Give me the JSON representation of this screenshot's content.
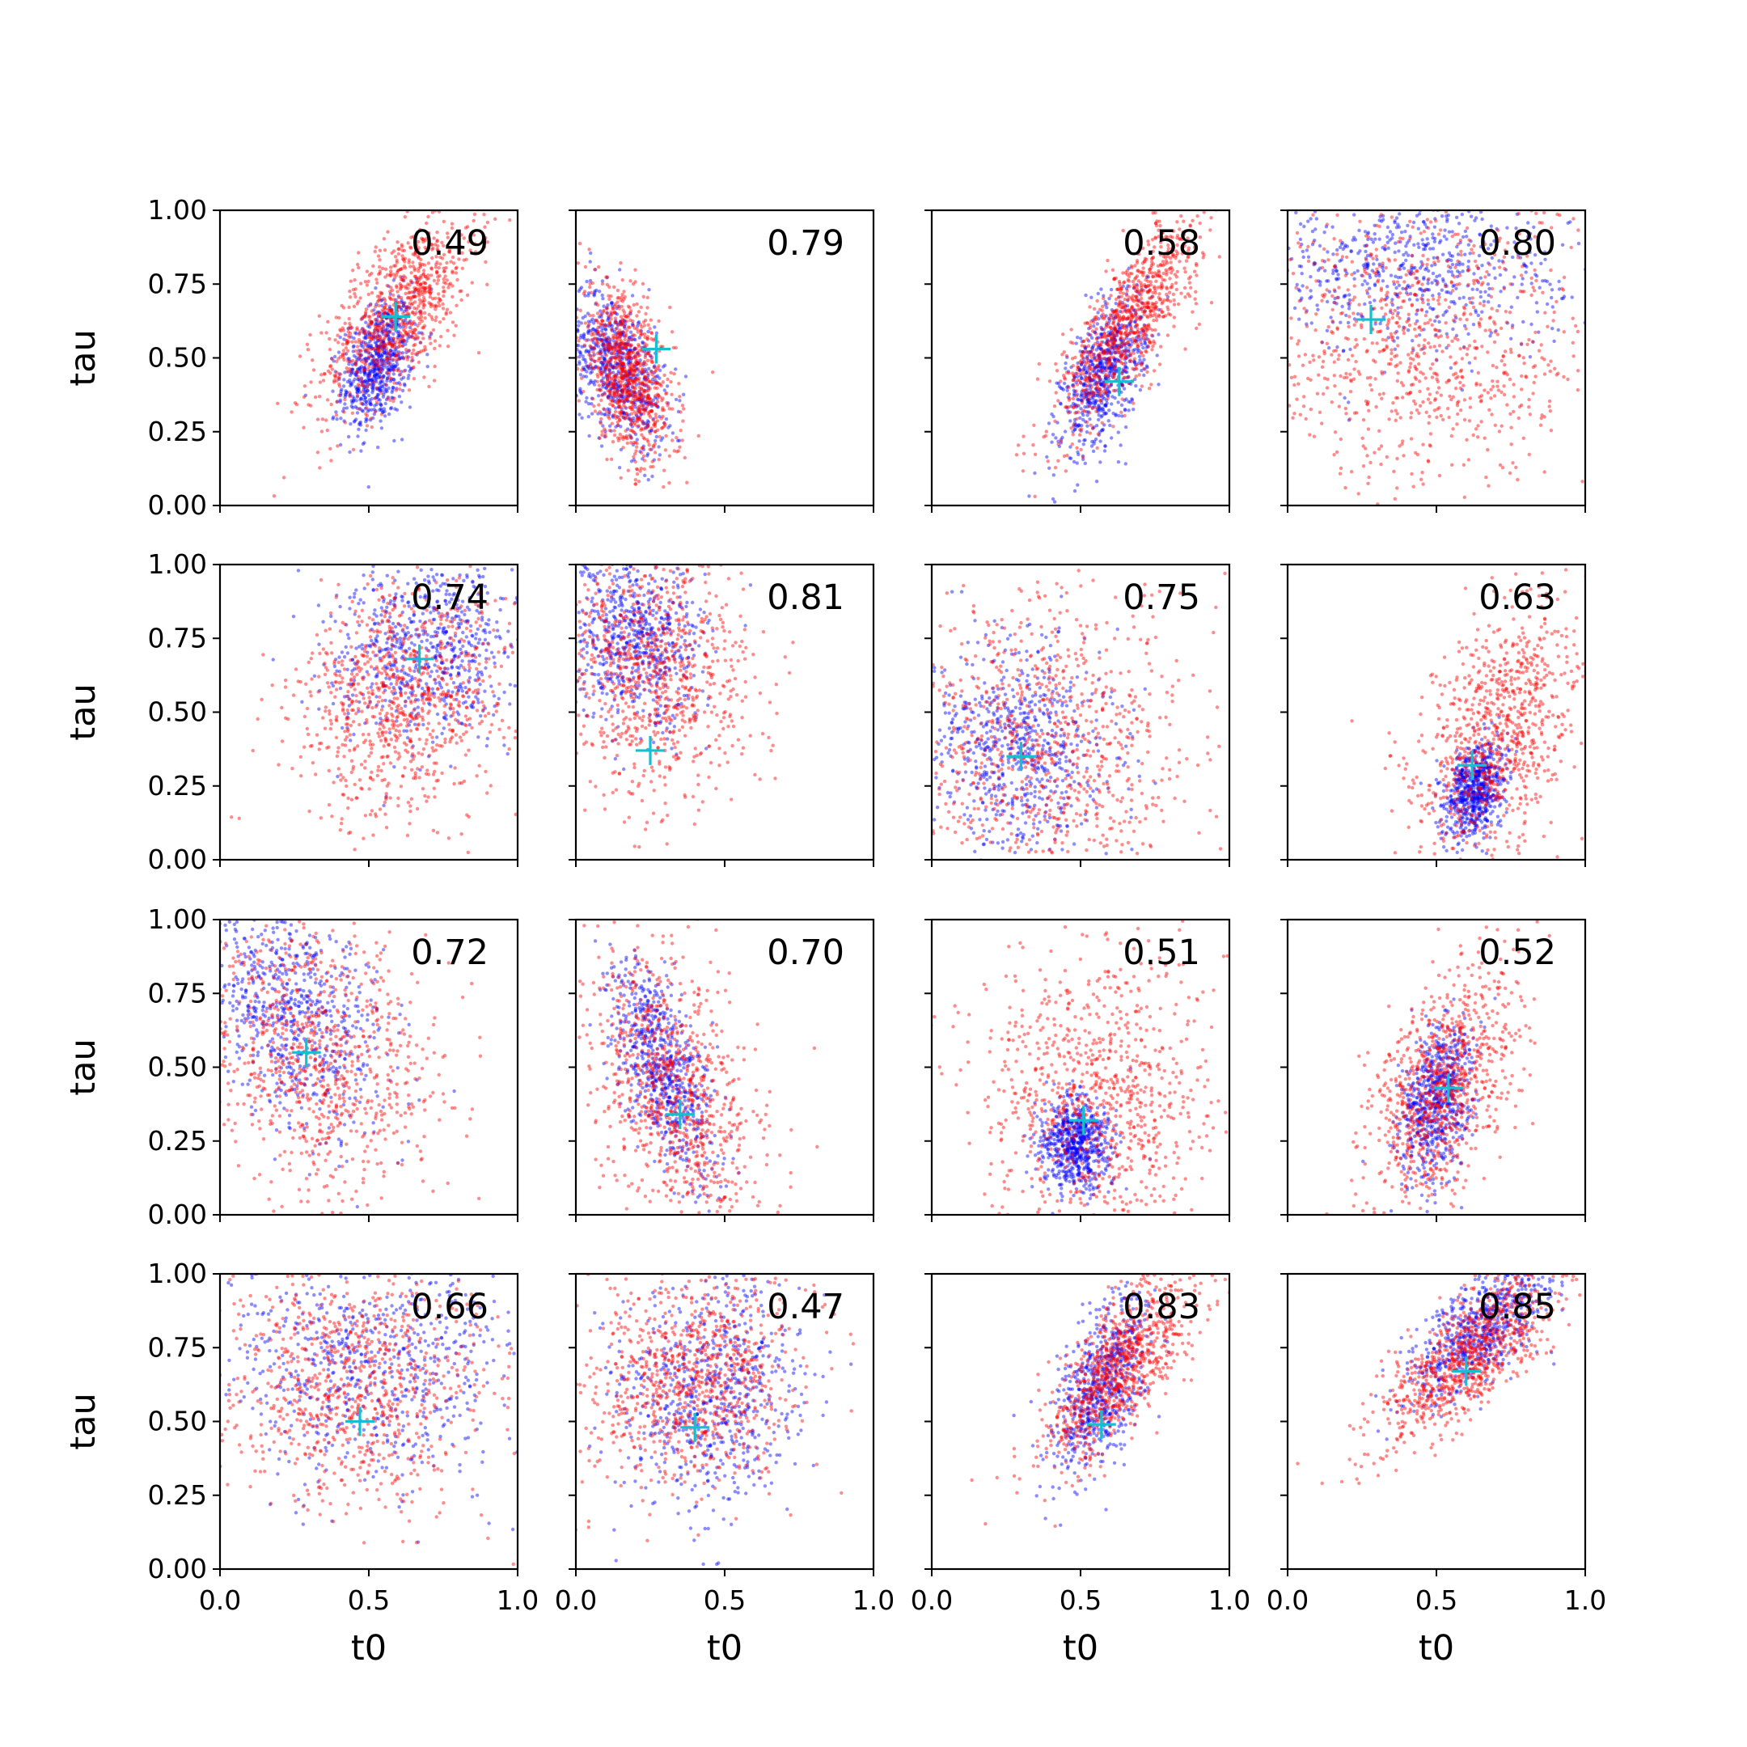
{
  "chart_data": {
    "type": "scatter",
    "layout": "4x4 grid of scatter panels, shared x and y axes",
    "xlabel": "t0",
    "ylabel": "tau",
    "xlim": [
      0,
      1
    ],
    "ylim": [
      0,
      1
    ],
    "xticks": [
      "0.0",
      "0.5",
      "1.0"
    ],
    "yticks": [
      "0.00",
      "0.25",
      "0.50",
      "0.75",
      "1.00"
    ],
    "grid": false,
    "legend": "none",
    "series_colors": {
      "blue": "#0000ff",
      "red": "#ff0000",
      "marker": "#17becf"
    },
    "panels": [
      {
        "score": "0.49",
        "marker": [
          0.59,
          0.64
        ],
        "blue": {
          "cx": 0.53,
          "cy": 0.48,
          "sx": 0.06,
          "sy": 0.11,
          "rho": 0.35,
          "n": 700
        },
        "red": {
          "cx": 0.6,
          "cy": 0.66,
          "sx": 0.13,
          "sy": 0.17,
          "rho": 0.65,
          "n": 900
        }
      },
      {
        "score": "0.79",
        "marker": [
          0.27,
          0.53
        ],
        "blue": {
          "cx": 0.14,
          "cy": 0.47,
          "sx": 0.08,
          "sy": 0.13,
          "rho": -0.45,
          "n": 700
        },
        "red": {
          "cx": 0.17,
          "cy": 0.44,
          "sx": 0.08,
          "sy": 0.15,
          "rho": -0.5,
          "n": 900
        }
      },
      {
        "score": "0.58",
        "marker": [
          0.63,
          0.42
        ],
        "blue": {
          "cx": 0.58,
          "cy": 0.45,
          "sx": 0.07,
          "sy": 0.13,
          "rho": 0.55,
          "n": 700
        },
        "red": {
          "cx": 0.66,
          "cy": 0.62,
          "sx": 0.12,
          "sy": 0.18,
          "rho": 0.8,
          "n": 900
        }
      },
      {
        "score": "0.80",
        "marker": [
          0.28,
          0.63
        ],
        "blue": {
          "cx": 0.4,
          "cy": 0.82,
          "sx": 0.28,
          "sy": 0.15,
          "rho": 0.0,
          "n": 700
        },
        "red": {
          "cx": 0.45,
          "cy": 0.55,
          "sx": 0.28,
          "sy": 0.25,
          "rho": 0.0,
          "n": 900
        }
      },
      {
        "score": "0.74",
        "marker": [
          0.67,
          0.68
        ],
        "blue": {
          "cx": 0.7,
          "cy": 0.72,
          "sx": 0.16,
          "sy": 0.16,
          "rho": 0.1,
          "n": 700
        },
        "red": {
          "cx": 0.62,
          "cy": 0.55,
          "sx": 0.18,
          "sy": 0.2,
          "rho": 0.15,
          "n": 900
        }
      },
      {
        "score": "0.81",
        "marker": [
          0.25,
          0.37
        ],
        "blue": {
          "cx": 0.2,
          "cy": 0.75,
          "sx": 0.12,
          "sy": 0.15,
          "rho": -0.15,
          "n": 700
        },
        "red": {
          "cx": 0.26,
          "cy": 0.65,
          "sx": 0.16,
          "sy": 0.22,
          "rho": -0.1,
          "n": 900
        }
      },
      {
        "score": "0.75",
        "marker": [
          0.3,
          0.35
        ],
        "blue": {
          "cx": 0.3,
          "cy": 0.38,
          "sx": 0.15,
          "sy": 0.18,
          "rho": 0.0,
          "n": 700
        },
        "red": {
          "cx": 0.38,
          "cy": 0.38,
          "sx": 0.25,
          "sy": 0.25,
          "rho": 0.0,
          "n": 900
        }
      },
      {
        "score": "0.63",
        "marker": [
          0.62,
          0.32
        ],
        "blue": {
          "cx": 0.63,
          "cy": 0.24,
          "sx": 0.05,
          "sy": 0.08,
          "rho": 0.3,
          "n": 700
        },
        "red": {
          "cx": 0.7,
          "cy": 0.4,
          "sx": 0.14,
          "sy": 0.23,
          "rho": 0.45,
          "n": 900
        }
      },
      {
        "score": "0.72",
        "marker": [
          0.29,
          0.55
        ],
        "blue": {
          "cx": 0.25,
          "cy": 0.68,
          "sx": 0.16,
          "sy": 0.2,
          "rho": -0.3,
          "n": 700
        },
        "red": {
          "cx": 0.32,
          "cy": 0.55,
          "sx": 0.2,
          "sy": 0.24,
          "rho": -0.25,
          "n": 900
        }
      },
      {
        "score": "0.70",
        "marker": [
          0.35,
          0.34
        ],
        "blue": {
          "cx": 0.29,
          "cy": 0.5,
          "sx": 0.09,
          "sy": 0.18,
          "rho": -0.6,
          "n": 700
        },
        "red": {
          "cx": 0.33,
          "cy": 0.42,
          "sx": 0.14,
          "sy": 0.24,
          "rho": -0.45,
          "n": 900
        }
      },
      {
        "score": "0.51",
        "marker": [
          0.51,
          0.32
        ],
        "blue": {
          "cx": 0.48,
          "cy": 0.24,
          "sx": 0.06,
          "sy": 0.08,
          "rho": 0.0,
          "n": 700
        },
        "red": {
          "cx": 0.55,
          "cy": 0.4,
          "sx": 0.2,
          "sy": 0.25,
          "rho": 0.0,
          "n": 900
        }
      },
      {
        "score": "0.52",
        "marker": [
          0.54,
          0.43
        ],
        "blue": {
          "cx": 0.5,
          "cy": 0.38,
          "sx": 0.06,
          "sy": 0.13,
          "rho": 0.3,
          "n": 700
        },
        "red": {
          "cx": 0.52,
          "cy": 0.42,
          "sx": 0.12,
          "sy": 0.2,
          "rho": 0.45,
          "n": 900
        }
      },
      {
        "score": "0.66",
        "marker": [
          0.47,
          0.5
        ],
        "blue": {
          "cx": 0.5,
          "cy": 0.7,
          "sx": 0.24,
          "sy": 0.2,
          "rho": 0.0,
          "n": 700
        },
        "red": {
          "cx": 0.45,
          "cy": 0.65,
          "sx": 0.24,
          "sy": 0.22,
          "rho": 0.0,
          "n": 900
        }
      },
      {
        "score": "0.47",
        "marker": [
          0.4,
          0.48
        ],
        "blue": {
          "cx": 0.45,
          "cy": 0.6,
          "sx": 0.15,
          "sy": 0.2,
          "rho": 0.1,
          "n": 700
        },
        "red": {
          "cx": 0.4,
          "cy": 0.65,
          "sx": 0.18,
          "sy": 0.18,
          "rho": 0.1,
          "n": 900
        }
      },
      {
        "score": "0.83",
        "marker": [
          0.57,
          0.49
        ],
        "blue": {
          "cx": 0.57,
          "cy": 0.62,
          "sx": 0.08,
          "sy": 0.15,
          "rho": 0.55,
          "n": 700
        },
        "red": {
          "cx": 0.63,
          "cy": 0.68,
          "sx": 0.12,
          "sy": 0.16,
          "rho": 0.7,
          "n": 900
        }
      },
      {
        "score": "0.85",
        "marker": [
          0.6,
          0.67
        ],
        "blue": {
          "cx": 0.65,
          "cy": 0.8,
          "sx": 0.12,
          "sy": 0.12,
          "rho": 0.7,
          "n": 700
        },
        "red": {
          "cx": 0.62,
          "cy": 0.73,
          "sx": 0.15,
          "sy": 0.15,
          "rho": 0.75,
          "n": 900
        }
      }
    ]
  }
}
